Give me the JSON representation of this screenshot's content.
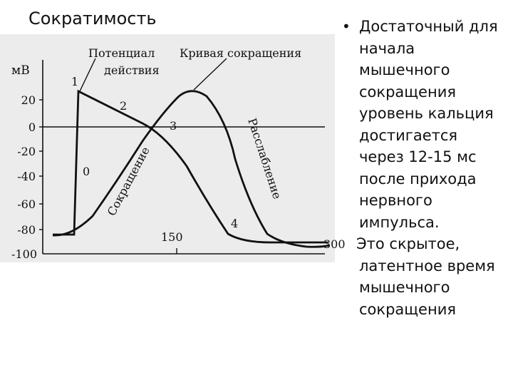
{
  "title": "Сократимость",
  "figure": {
    "axis_unit": "мВ",
    "y_ticks": [
      "20",
      "0",
      "-20",
      "-40",
      "-60",
      "-80",
      "-100"
    ],
    "x_ticks": [
      "150",
      "300"
    ],
    "labels": {
      "action_potential": [
        "Потенциал",
        "действия"
      ],
      "contraction_curve": "Кривая сокращения",
      "contraction": "Сокращение",
      "relaxation": "Расслабление"
    },
    "phases": [
      "0",
      "1",
      "2",
      "3",
      "4"
    ]
  },
  "text": {
    "bullet_lines": [
      "Достаточный для",
      "начала",
      "мышечного",
      "сокращения",
      "уровень кальция",
      "достигается",
      "через 12-15 мс",
      "после прихода",
      "нервного",
      "импульса."
    ],
    "second_lines": [
      "Это скрытое,",
      "латентное время",
      "мышечного",
      "сокращения"
    ]
  }
}
